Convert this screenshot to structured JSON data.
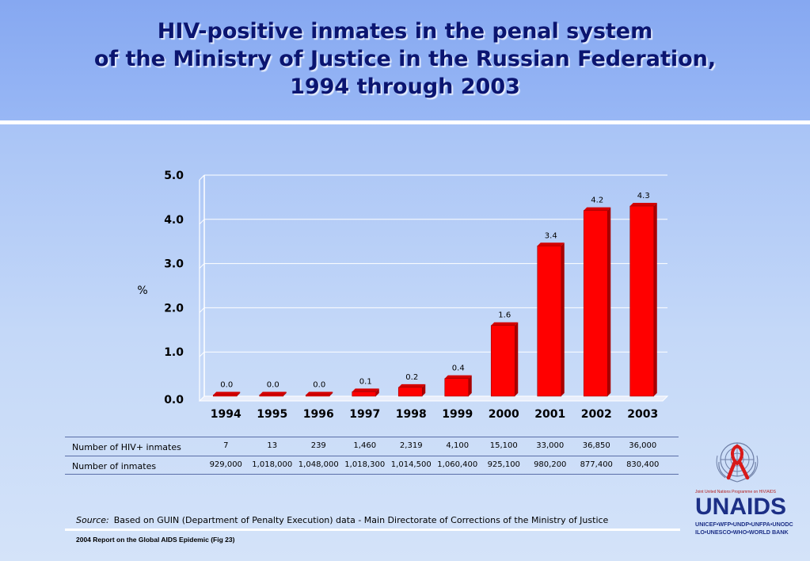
{
  "title": {
    "line1": "HIV-positive inmates in the penal system",
    "line2": "of the Ministry of Justice in the Russian Federation,",
    "line3": "1994 through 2003"
  },
  "chart_data": {
    "type": "bar",
    "categories": [
      "1994",
      "1995",
      "1996",
      "1997",
      "1998",
      "1999",
      "2000",
      "2001",
      "2002",
      "2003"
    ],
    "values": [
      0.0,
      0.0,
      0.0,
      0.1,
      0.2,
      0.4,
      1.6,
      3.4,
      4.2,
      4.3
    ],
    "data_labels": [
      "0.0",
      "0.0",
      "0.0",
      "0.1",
      "0.2",
      "0.4",
      "1.6",
      "3.4",
      "4.2",
      "4.3"
    ],
    "ylabel": "%",
    "ylim": [
      0,
      5
    ],
    "yticks": [
      "0.0",
      "1.0",
      "2.0",
      "3.0",
      "4.0",
      "5.0"
    ],
    "grid": true,
    "bar_color": "#ff0000",
    "bar_side_color": "#a80000"
  },
  "table": {
    "rows": [
      {
        "label": "Number of HIV+ inmates",
        "values": [
          "7",
          "13",
          "239",
          "1,460",
          "2,319",
          "4,100",
          "15,100",
          "33,000",
          "36,850",
          "36,000"
        ]
      },
      {
        "label": "Number of inmates",
        "values": [
          "929,000",
          "1,018,000",
          "1,048,000",
          "1,018,300",
          "1,014,500",
          "1,060,400",
          "925,100",
          "980,200",
          "877,400",
          "830,400"
        ]
      }
    ]
  },
  "source": {
    "label": "Source:",
    "text": "Based on GUIN (Department of Penalty Execution) data - Main Directorate of Corrections of the Ministry of Justice"
  },
  "footer": "2004 Report on the Global AIDS Epidemic (Fig 23)",
  "logo": {
    "small_text": "Joint United Nations Programme on HIV/AIDS",
    "name": "UNAIDS",
    "sub1": "UNICEF•WFP•UNDP•UNFPA•UNODC",
    "sub2": "ILO•UNESCO•WHO•WORLD BANK"
  }
}
